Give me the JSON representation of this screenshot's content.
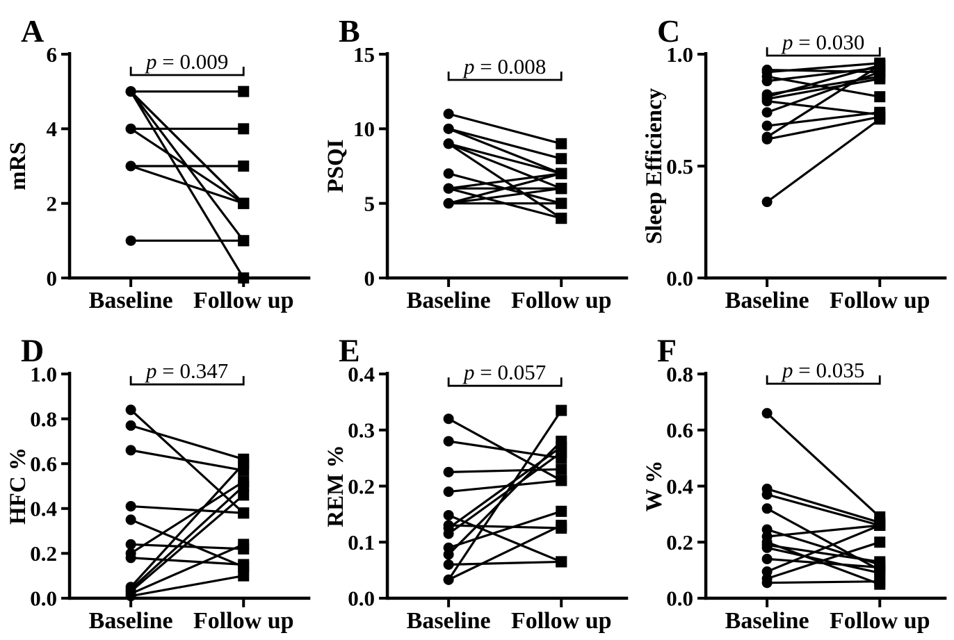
{
  "figure": {
    "background": "#ffffff",
    "ink": "#000000",
    "categories": [
      "Baseline",
      "Follow up"
    ]
  },
  "chart_data": [
    {
      "type": "line",
      "subtype": "paired-dot-plot",
      "panel": "A",
      "title": "",
      "xlabel": "",
      "ylabel": "mRS",
      "categories": [
        "Baseline",
        "Follow up"
      ],
      "ylim": [
        0,
        6
      ],
      "yticks": [
        {
          "value": 0,
          "label": "0"
        },
        {
          "value": 2,
          "label": "2"
        },
        {
          "value": 4,
          "label": "4"
        },
        {
          "value": 6,
          "label": "6"
        }
      ],
      "p_value_label": "p = 0.009",
      "baseline_marker": "circle",
      "followup_marker": "square",
      "pairs": [
        [
          5,
          5
        ],
        [
          5,
          2
        ],
        [
          5,
          2
        ],
        [
          5,
          1
        ],
        [
          5,
          0
        ],
        [
          4,
          4
        ],
        [
          4,
          2
        ],
        [
          3,
          3
        ],
        [
          3,
          2
        ],
        [
          1,
          1
        ]
      ]
    },
    {
      "type": "line",
      "subtype": "paired-dot-plot",
      "panel": "B",
      "title": "",
      "xlabel": "",
      "ylabel": "PSQI",
      "categories": [
        "Baseline",
        "Follow up"
      ],
      "ylim": [
        0,
        15
      ],
      "yticks": [
        {
          "value": 0,
          "label": "0"
        },
        {
          "value": 5,
          "label": "5"
        },
        {
          "value": 10,
          "label": "10"
        },
        {
          "value": 15,
          "label": "15"
        }
      ],
      "p_value_label": "p = 0.008",
      "baseline_marker": "circle",
      "followup_marker": "square",
      "pairs": [
        [
          11,
          9
        ],
        [
          10,
          8
        ],
        [
          10,
          7
        ],
        [
          9,
          7
        ],
        [
          9,
          6
        ],
        [
          9,
          4
        ],
        [
          7,
          5
        ],
        [
          6,
          7
        ],
        [
          6,
          6
        ],
        [
          6,
          4
        ],
        [
          5,
          7
        ],
        [
          5,
          6
        ],
        [
          5,
          5
        ]
      ]
    },
    {
      "type": "line",
      "subtype": "paired-dot-plot",
      "panel": "C",
      "title": "",
      "xlabel": "",
      "ylabel": "Sleep Efficiency",
      "categories": [
        "Baseline",
        "Follow up"
      ],
      "ylim": [
        0,
        1
      ],
      "yticks": [
        {
          "value": 0,
          "label": "0.0"
        },
        {
          "value": 0.5,
          "label": "0.5"
        },
        {
          "value": 1,
          "label": "1.0"
        }
      ],
      "p_value_label": "p = 0.030",
      "baseline_marker": "circle",
      "followup_marker": "square",
      "pairs": [
        [
          0.93,
          0.92
        ],
        [
          0.92,
          0.96
        ],
        [
          0.9,
          0.81
        ],
        [
          0.88,
          0.94
        ],
        [
          0.82,
          0.9
        ],
        [
          0.81,
          0.95
        ],
        [
          0.8,
          0.89
        ],
        [
          0.79,
          0.73
        ],
        [
          0.74,
          0.92
        ],
        [
          0.68,
          0.74
        ],
        [
          0.63,
          0.95
        ],
        [
          0.62,
          0.72
        ],
        [
          0.34,
          0.71
        ]
      ]
    },
    {
      "type": "line",
      "subtype": "paired-dot-plot",
      "panel": "D",
      "title": "",
      "xlabel": "",
      "ylabel": "HFC %",
      "categories": [
        "Baseline",
        "Follow up"
      ],
      "ylim": [
        0,
        1
      ],
      "yticks": [
        {
          "value": 0,
          "label": "0.0"
        },
        {
          "value": 0.2,
          "label": "0.2"
        },
        {
          "value": 0.4,
          "label": "0.4"
        },
        {
          "value": 0.6,
          "label": "0.6"
        },
        {
          "value": 0.8,
          "label": "0.8"
        },
        {
          "value": 1,
          "label": "1.0"
        }
      ],
      "p_value_label": "p = 0.347",
      "baseline_marker": "circle",
      "followup_marker": "square",
      "pairs": [
        [
          0.84,
          0.38
        ],
        [
          0.77,
          0.62
        ],
        [
          0.66,
          0.57
        ],
        [
          0.41,
          0.38
        ],
        [
          0.35,
          0.14
        ],
        [
          0.24,
          0.22
        ],
        [
          0.2,
          0.52
        ],
        [
          0.18,
          0.15
        ],
        [
          0.05,
          0.6
        ],
        [
          0.04,
          0.5
        ],
        [
          0.03,
          0.46
        ],
        [
          0.02,
          0.24
        ],
        [
          0.01,
          0.1
        ]
      ]
    },
    {
      "type": "line",
      "subtype": "paired-dot-plot",
      "panel": "E",
      "title": "",
      "xlabel": "",
      "ylabel": "REM %",
      "categories": [
        "Baseline",
        "Follow up"
      ],
      "ylim": [
        0,
        0.4
      ],
      "yticks": [
        {
          "value": 0,
          "label": "0.0"
        },
        {
          "value": 0.1,
          "label": "0.1"
        },
        {
          "value": 0.2,
          "label": "0.2"
        },
        {
          "value": 0.3,
          "label": "0.3"
        },
        {
          "value": 0.4,
          "label": "0.4"
        }
      ],
      "p_value_label": "p = 0.057",
      "baseline_marker": "circle",
      "followup_marker": "square",
      "pairs": [
        [
          0.32,
          0.21
        ],
        [
          0.28,
          0.25
        ],
        [
          0.225,
          0.23
        ],
        [
          0.19,
          0.21
        ],
        [
          0.148,
          0.065
        ],
        [
          0.13,
          0.125
        ],
        [
          0.125,
          0.27
        ],
        [
          0.115,
          0.26
        ],
        [
          0.09,
          0.155
        ],
        [
          0.078,
          0.28
        ],
        [
          0.06,
          0.065
        ],
        [
          0.033,
          0.335
        ],
        [
          0.033,
          0.13
        ]
      ]
    },
    {
      "type": "line",
      "subtype": "paired-dot-plot",
      "panel": "F",
      "title": "",
      "xlabel": "",
      "ylabel": "W %",
      "categories": [
        "Baseline",
        "Follow up"
      ],
      "ylim": [
        0,
        0.8
      ],
      "yticks": [
        {
          "value": 0,
          "label": "0.0"
        },
        {
          "value": 0.2,
          "label": "0.2"
        },
        {
          "value": 0.4,
          "label": "0.4"
        },
        {
          "value": 0.6,
          "label": "0.6"
        },
        {
          "value": 0.8,
          "label": "0.8"
        }
      ],
      "p_value_label": "p = 0.035",
      "baseline_marker": "circle",
      "followup_marker": "square",
      "pairs": [
        [
          0.66,
          0.29
        ],
        [
          0.39,
          0.27
        ],
        [
          0.37,
          0.26
        ],
        [
          0.32,
          0.1
        ],
        [
          0.245,
          0.12
        ],
        [
          0.22,
          0.26
        ],
        [
          0.2,
          0.05
        ],
        [
          0.19,
          0.13
        ],
        [
          0.18,
          0.09
        ],
        [
          0.14,
          0.11
        ],
        [
          0.095,
          0.26
        ],
        [
          0.07,
          0.2
        ],
        [
          0.055,
          0.06
        ]
      ]
    }
  ]
}
